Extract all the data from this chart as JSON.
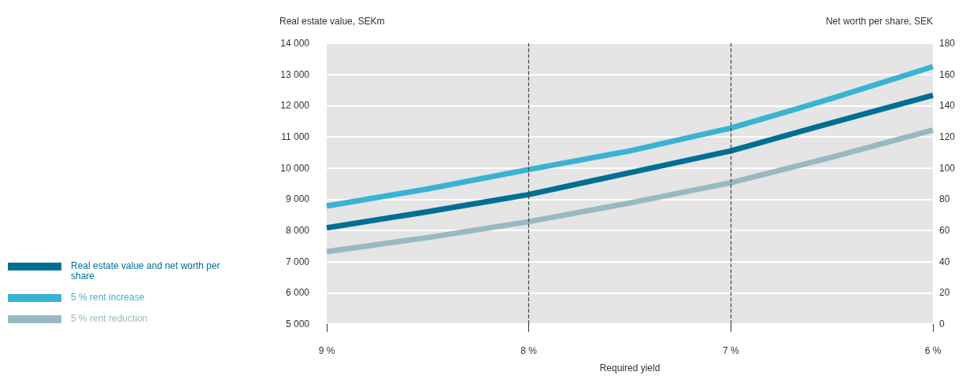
{
  "chart_data": {
    "type": "line",
    "xlabel": "Required yield",
    "ylabel": "Real estate value, SEKm",
    "y2label": "Net worth per share, SEK",
    "x": [
      9,
      8.5,
      8,
      7.5,
      7,
      6.5,
      6
    ],
    "xlim": [
      9,
      6
    ],
    "xticks": [
      {
        "value": 9,
        "label": "9 %"
      },
      {
        "value": 8,
        "label": "8 %"
      },
      {
        "value": 7,
        "label": "7 %"
      },
      {
        "value": 6,
        "label": "6 %"
      }
    ],
    "ylim": [
      5000,
      14000
    ],
    "yticks": [
      {
        "value": 5000,
        "label": "5 000"
      },
      {
        "value": 6000,
        "label": "6 000"
      },
      {
        "value": 7000,
        "label": "7 000"
      },
      {
        "value": 8000,
        "label": "8 000"
      },
      {
        "value": 9000,
        "label": "9 000"
      },
      {
        "value": 10000,
        "label": "10 000"
      },
      {
        "value": 11000,
        "label": "11 000"
      },
      {
        "value": 12000,
        "label": "12 000"
      },
      {
        "value": 13000,
        "label": "13 000"
      },
      {
        "value": 14000,
        "label": "14 000"
      }
    ],
    "y2lim": [
      0,
      180
    ],
    "y2ticks": [
      0,
      20,
      40,
      60,
      80,
      100,
      120,
      140,
      160,
      180
    ],
    "series": [
      {
        "name": "Real estate value and net worth per share",
        "color": "#006f94",
        "values": [
          8080,
          8600,
          9150,
          9850,
          10550,
          11450,
          12330
        ]
      },
      {
        "name": "5 % rent increase",
        "color": "#3ab3d3",
        "values": [
          8780,
          9330,
          9950,
          10550,
          11280,
          12230,
          13250
        ]
      },
      {
        "name": "5 % rent reduction",
        "color": "#98b9c2",
        "values": [
          7320,
          7770,
          8280,
          8880,
          9530,
          10350,
          11220
        ]
      }
    ],
    "ref_lines": [
      {
        "axis": "x",
        "value": 8,
        "color": "#444444",
        "line_style": "dashed"
      },
      {
        "axis": "x",
        "value": 7,
        "color": "#444444",
        "line_style": "dashed"
      }
    ],
    "grid": "y",
    "legend": "left",
    "marker": "none",
    "line_style": "solid"
  }
}
